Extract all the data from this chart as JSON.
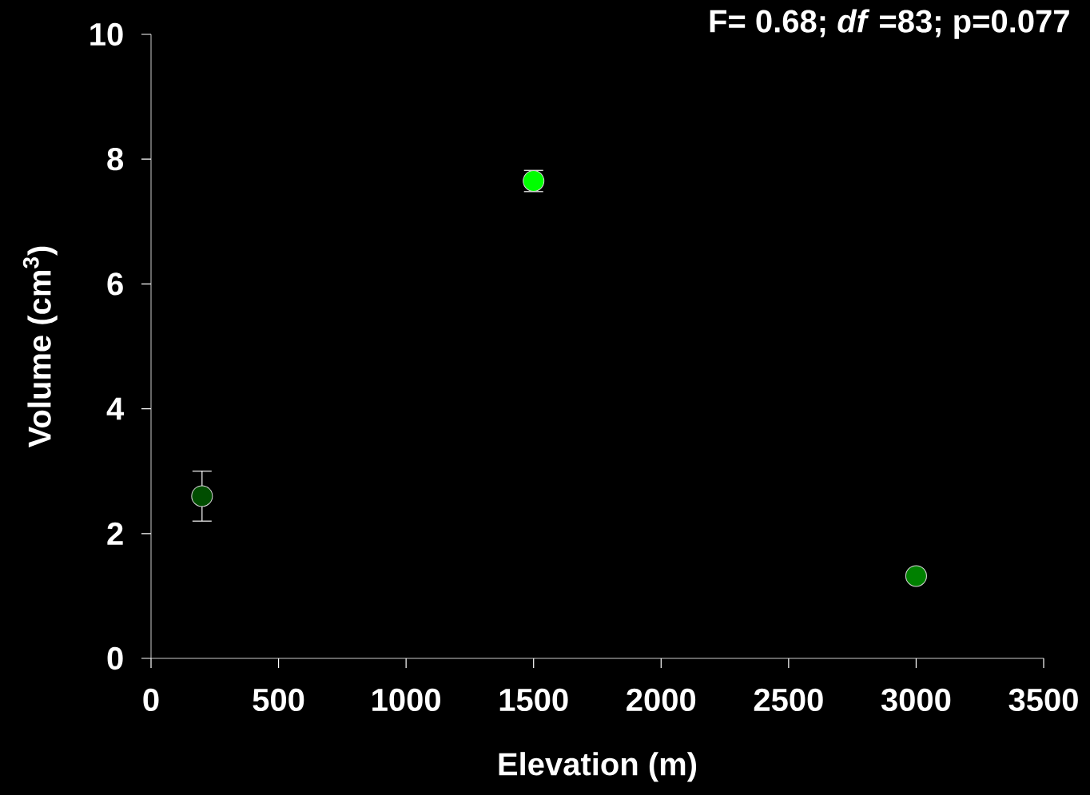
{
  "chart_data": {
    "type": "scatter",
    "annotations": [
      "F= 0.68; *df* =83; p=0.077"
    ],
    "xlabel": "Elevation (m)",
    "ylabel": "Volume (cm$^{3}$)",
    "x": [
      200,
      1500,
      3000
    ],
    "values": [
      2.6,
      7.65,
      1.32
    ],
    "errors": [
      0.4,
      0.17,
      null
    ],
    "colors": [
      "#004d00",
      "#00ff00",
      "#008000"
    ],
    "marker": "circle",
    "xlim": [
      0,
      3500
    ],
    "xticks": [
      0,
      500,
      1000,
      1500,
      2000,
      2500,
      3000,
      3500
    ],
    "ylim": [
      0,
      10
    ],
    "yticks": [
      0,
      2,
      4,
      6,
      8,
      10
    ],
    "grid": false
  }
}
